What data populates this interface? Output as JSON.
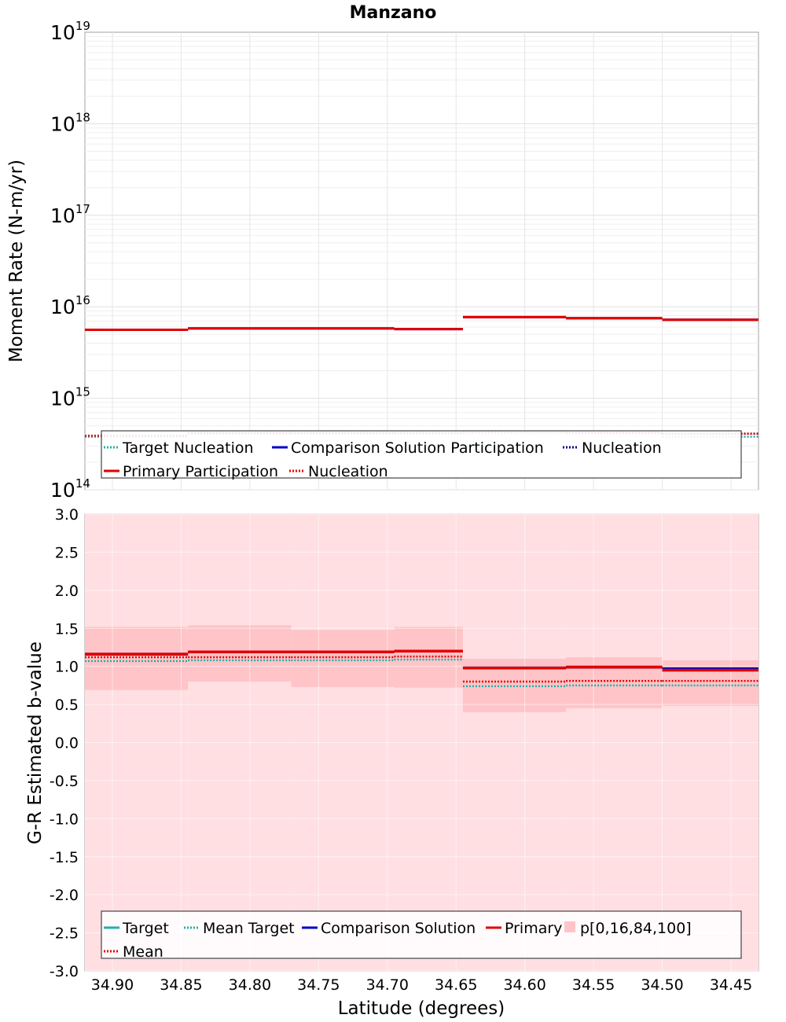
{
  "title": "Manzano",
  "xlabel": "Latitude (degrees)",
  "chart_data": [
    {
      "type": "line",
      "name": "moment-rate",
      "ylabel": "Moment Rate (N-m/yr)",
      "yscale": "log",
      "ylim_exp": [
        14,
        19
      ],
      "y_ticks": [
        {
          "base": "10",
          "exp": "14"
        },
        {
          "base": "10",
          "exp": "15"
        },
        {
          "base": "10",
          "exp": "16"
        },
        {
          "base": "10",
          "exp": "17"
        },
        {
          "base": "10",
          "exp": "18"
        },
        {
          "base": "10",
          "exp": "19"
        }
      ],
      "bins": [
        [
          34.92,
          34.845
        ],
        [
          34.845,
          34.77
        ],
        [
          34.77,
          34.695
        ],
        [
          34.695,
          34.645
        ],
        [
          34.645,
          34.57
        ],
        [
          34.57,
          34.5
        ],
        [
          34.5,
          34.43
        ]
      ],
      "grid": true,
      "series": [
        {
          "name": "Target Nucleation",
          "color": "#20b2aa",
          "style": "dotted",
          "values": [
            380000000000000.0,
            410000000000000.0,
            410000000000000.0,
            410000000000000.0,
            420000000000000.0,
            420000000000000.0,
            380000000000000.0
          ]
        },
        {
          "name": "Comparison Solution Participation",
          "color": "#0000c8",
          "style": "solid",
          "values": [
            5600000000000000.0,
            5800000000000000.0,
            5800000000000000.0,
            5700000000000000.0,
            7700000000000000.0,
            7500000000000000.0,
            7200000000000000.0
          ]
        },
        {
          "name": "Nucleation",
          "color": "#00008b",
          "style": "dotted",
          "values": [
            390000000000000.0,
            420000000000000.0,
            420000000000000.0,
            420000000000000.0,
            430000000000000.0,
            420000000000000.0,
            410000000000000.0
          ]
        },
        {
          "name": "Primary Participation",
          "color": "#e00000",
          "style": "solid",
          "values": [
            5600000000000000.0,
            5800000000000000.0,
            5800000000000000.0,
            5700000000000000.0,
            7700000000000000.0,
            7500000000000000.0,
            7200000000000000.0
          ]
        },
        {
          "name": "Nucleation",
          "color": "#e00000",
          "style": "dotted",
          "values": [
            390000000000000.0,
            420000000000000.0,
            420000000000000.0,
            420000000000000.0,
            430000000000000.0,
            420000000000000.0,
            410000000000000.0
          ]
        }
      ],
      "legend": {
        "placement": "bottom",
        "rows": [
          [
            {
              "label": "Target Nucleation",
              "color": "#20b2aa",
              "style": "dotted"
            },
            {
              "label": "Comparison Solution Participation",
              "color": "#0000c8",
              "style": "solid"
            },
            {
              "label": "Nucleation",
              "color": "#00008b",
              "style": "dotted"
            }
          ],
          [
            {
              "label": "Primary Participation",
              "color": "#e00000",
              "style": "solid"
            },
            {
              "label": "Nucleation",
              "color": "#e00000",
              "style": "dotted"
            }
          ]
        ]
      }
    },
    {
      "type": "line",
      "name": "b-value",
      "ylabel": "G-R Estimated b-value",
      "ylim": [
        -3.0,
        3.0
      ],
      "y_ticks": [
        "3.0",
        "2.5",
        "2.0",
        "1.5",
        "1.0",
        "0.5",
        "0.0",
        "-0.5",
        "-1.0",
        "-1.5",
        "-2.0",
        "-2.5",
        "-3.0"
      ],
      "x_ticks": [
        "34.90",
        "34.85",
        "34.80",
        "34.75",
        "34.70",
        "34.65",
        "34.60",
        "34.55",
        "34.50",
        "34.45"
      ],
      "xlim": [
        34.92,
        34.43
      ],
      "bins": [
        [
          34.92,
          34.845
        ],
        [
          34.845,
          34.77
        ],
        [
          34.77,
          34.695
        ],
        [
          34.695,
          34.645
        ],
        [
          34.645,
          34.57
        ],
        [
          34.57,
          34.5
        ],
        [
          34.5,
          34.43
        ]
      ],
      "grid": true,
      "band_outer": {
        "name": "p[0,16,84,100]",
        "color": "#ffdfe2",
        "low": [
          -3.0,
          -3.0,
          -3.0,
          -3.0,
          -3.0,
          -3.0,
          -3.0
        ],
        "high": [
          3.0,
          3.0,
          3.0,
          3.0,
          3.0,
          3.0,
          3.0
        ]
      },
      "band_inner": {
        "color": "#ffc4c8",
        "low": [
          0.69,
          0.8,
          0.73,
          0.72,
          0.4,
          0.45,
          0.48
        ],
        "high": [
          1.52,
          1.54,
          1.48,
          1.52,
          1.1,
          1.12,
          1.08
        ]
      },
      "series": [
        {
          "name": "Target",
          "color": "#20b2aa",
          "style": "solid",
          "values": [
            1.16,
            1.19,
            1.19,
            1.2,
            0.98,
            0.99,
            0.97
          ]
        },
        {
          "name": "Mean Target",
          "color": "#20b2aa",
          "style": "dotted",
          "values": [
            1.07,
            1.08,
            1.08,
            1.09,
            0.74,
            0.75,
            0.75
          ]
        },
        {
          "name": "Comparison Solution",
          "color": "#0000c8",
          "style": "solid",
          "values": [
            1.16,
            1.19,
            1.19,
            1.2,
            0.98,
            0.99,
            0.97
          ]
        },
        {
          "name": "Primary",
          "color": "#e00000",
          "style": "solid",
          "values": [
            1.16,
            1.19,
            1.19,
            1.2,
            0.98,
            0.99,
            0.95
          ]
        },
        {
          "name": "Mean",
          "color": "#e00000",
          "style": "dotted",
          "values": [
            1.12,
            1.12,
            1.12,
            1.13,
            0.8,
            0.81,
            0.81
          ]
        }
      ],
      "legend": {
        "placement": "bottom",
        "rows": [
          [
            {
              "label": "Target",
              "color": "#20b2aa",
              "style": "solid"
            },
            {
              "label": "Mean Target",
              "color": "#20b2aa",
              "style": "dotted"
            },
            {
              "label": "Comparison Solution",
              "color": "#0000c8",
              "style": "solid"
            },
            {
              "label": "Primary",
              "color": "#e00000",
              "style": "solid"
            },
            {
              "label": "p[0,16,84,100]",
              "color": "#ffc4c8",
              "style": "box"
            }
          ],
          [
            {
              "label": "Mean",
              "color": "#e00000",
              "style": "dotted"
            }
          ]
        ]
      }
    }
  ]
}
